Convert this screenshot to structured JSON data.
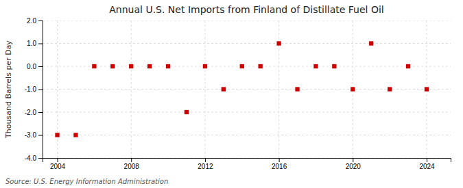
{
  "chart_data": {
    "type": "scatter",
    "title": "Annual U.S. Net Imports from Finland of Distillate Fuel Oil",
    "ylabel": "Thousand Barrels per Day",
    "source": "Source: U.S. Energy Information Administration",
    "x": [
      2004,
      2005,
      2006,
      2007,
      2008,
      2009,
      2010,
      2011,
      2012,
      2013,
      2014,
      2015,
      2016,
      2017,
      2018,
      2019,
      2020,
      2021,
      2022,
      2023,
      2024
    ],
    "values": [
      -3,
      -3,
      0,
      0,
      0,
      0,
      0,
      -2,
      0,
      -1,
      0,
      0,
      1,
      -1,
      0,
      0,
      -1,
      1,
      -1,
      0,
      -1
    ],
    "color": "#cc0000",
    "marker": "square",
    "xlim": [
      2003.2,
      2025.3
    ],
    "xticks": [
      2004,
      2008,
      2012,
      2016,
      2020,
      2024
    ],
    "ylim": [
      -4.0,
      2.0
    ],
    "yticks": [
      {
        "value": -4.0,
        "label": "-4.0"
      },
      {
        "value": -3.0,
        "label": "-3.0"
      },
      {
        "value": -2.0,
        "label": "-2.0"
      },
      {
        "value": -1.0,
        "label": "-1.0"
      },
      {
        "value": 0.0,
        "label": "0.0"
      },
      {
        "value": 1.0,
        "label": "1.0"
      },
      {
        "value": 2.0,
        "label": "2.0"
      }
    ],
    "grid": true
  }
}
